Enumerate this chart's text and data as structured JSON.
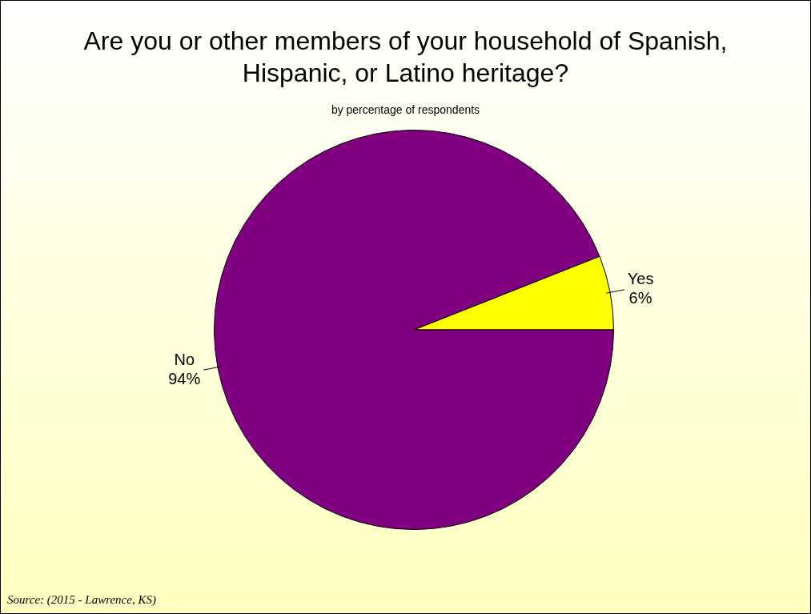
{
  "chart_data": {
    "type": "pie",
    "title": "Are you or other members of your household of Spanish, Hispanic, or Latino heritage?",
    "subtitle": "by percentage of respondents",
    "categories": [
      "Yes",
      "No"
    ],
    "values": [
      6,
      94
    ],
    "colors": [
      "#ffff00",
      "#800080"
    ],
    "value_labels": [
      "6%",
      "94%"
    ],
    "annotations": [
      "Source:  (2015 - Lawrence, KS)"
    ]
  }
}
